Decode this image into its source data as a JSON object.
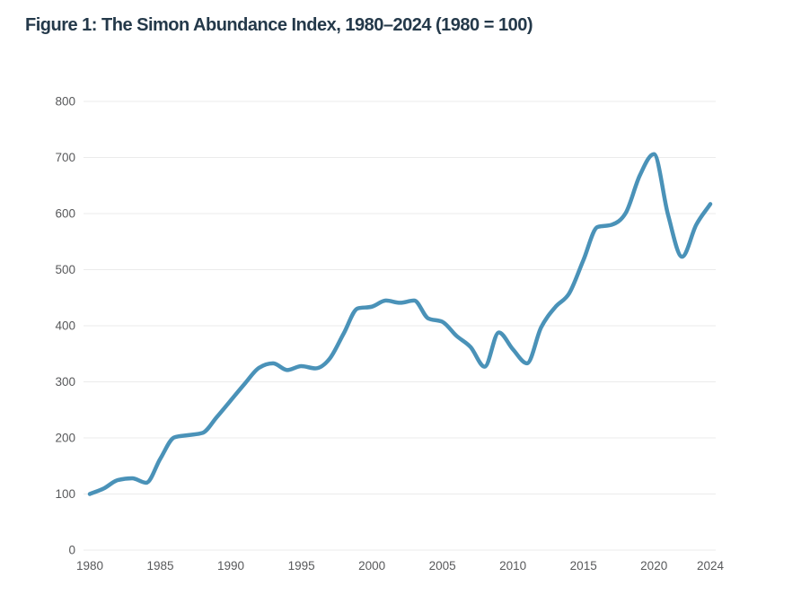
{
  "figure": {
    "title": "Figure 1: The Simon Abundance Index, 1980–2024 (1980 = 100)"
  },
  "chart_data": {
    "type": "line",
    "title": "Figure 1: The Simon Abundance Index, 1980–2024 (1980 = 100)",
    "xlabel": "",
    "ylabel": "",
    "xlim": [
      1980,
      2024
    ],
    "ylim": [
      0,
      800
    ],
    "xticks": [
      1980,
      1985,
      1990,
      1995,
      2000,
      2005,
      2010,
      2015,
      2020,
      2024
    ],
    "yticks": [
      0,
      100,
      200,
      300,
      400,
      500,
      600,
      700,
      800
    ],
    "grid": "horizontal",
    "legend": "none",
    "series": [
      {
        "name": "Simon Abundance Index",
        "x": [
          1980,
          1981,
          1982,
          1983,
          1984,
          1985,
          1986,
          1987,
          1988,
          1989,
          1990,
          1991,
          1992,
          1993,
          1994,
          1995,
          1996,
          1997,
          1998,
          1999,
          2000,
          2001,
          2002,
          2003,
          2004,
          2005,
          2006,
          2007,
          2008,
          2009,
          2010,
          2011,
          2012,
          2013,
          2014,
          2015,
          2016,
          2017,
          2018,
          2019,
          2020,
          2021,
          2022,
          2023,
          2024
        ],
        "y": [
          100,
          110,
          125,
          128,
          120,
          163,
          201,
          205,
          209,
          237,
          267,
          297,
          325,
          333,
          321,
          328,
          324,
          341,
          386,
          431,
          434,
          445,
          441,
          445,
          413,
          407,
          382,
          362,
          327,
          388,
          358,
          333,
          397,
          433,
          458,
          517,
          576,
          580,
          601,
          668,
          706,
          598,
          523,
          580,
          617
        ]
      }
    ],
    "colors": {
      "line": "#4a92b8",
      "grid": "#ebebeb",
      "tick_label": "#58595b",
      "title": "#24394a",
      "background": "#ffffff"
    }
  }
}
